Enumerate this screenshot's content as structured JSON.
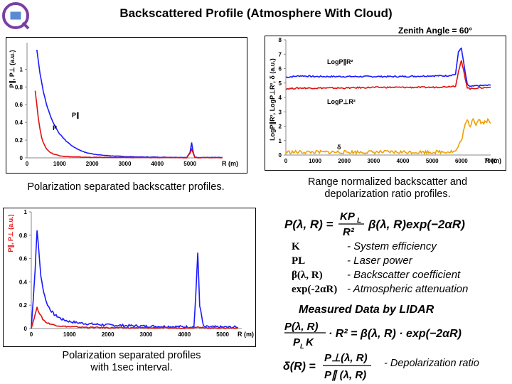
{
  "title": "Backscattered Profile (Atmosphere With Cloud)",
  "zenith_label": "Zenith Angle = 60°",
  "logo": {
    "name": "institute-logo",
    "color": "#7a3fa0"
  },
  "captions": {
    "chart1": "Polarization separated backscatter profiles.",
    "chart2_line1": "Range normalized backscatter and",
    "chart2_line2": "depolarization ratio profiles.",
    "chart3_line1": "Polarization separated profiles",
    "chart3_line2": "with 1sec interval."
  },
  "equation_main": "P(λ, R) = KP_L / R² · β(λ, R) exp(−2αR)",
  "legend": [
    {
      "key": "K",
      "desc": "- System efficiency"
    },
    {
      "key": "PL",
      "desc": "- Laser power"
    },
    {
      "key": "β(λ, R)",
      "desc": "- Backscatter coefficient"
    },
    {
      "key": "exp(-2αR)",
      "desc": "- Atmospheric attenuation"
    }
  ],
  "measured_title": "Measured Data by LIDAR",
  "equation_measured": "P(λ, R) / (P_L K) · R² = β(λ, R) · exp(−2αR)",
  "equation_depol": "δ(R) = P⊥(λ, R) / P∥(λ, R)",
  "depol_desc": "- Depolarization ratio",
  "chart_data": [
    {
      "type": "line",
      "ylabel": "P∥, P⊥ (a.u.)",
      "xlabel": "R (m)",
      "xlim": [
        0,
        6000
      ],
      "ylim": [
        0,
        1.3
      ],
      "xticks": [
        "0",
        "1000",
        "2000",
        "3000",
        "4000",
        "5000"
      ],
      "yticks": [
        "0",
        "0.2",
        "0.4",
        "0.6",
        "0.8",
        "1"
      ],
      "series": [
        {
          "name": "P∥",
          "color": "#1a1aff",
          "x": [
            300,
            400,
            500,
            600,
            700,
            800,
            900,
            1000,
            1200,
            1400,
            1600,
            1800,
            2000,
            2300,
            2600,
            3000,
            3500,
            4000,
            4500,
            4900,
            5000,
            5050,
            5100,
            5150,
            5200,
            5300,
            6000
          ],
          "y": [
            1.22,
            0.95,
            0.75,
            0.6,
            0.49,
            0.4,
            0.33,
            0.27,
            0.19,
            0.13,
            0.09,
            0.06,
            0.045,
            0.03,
            0.022,
            0.015,
            0.01,
            0.008,
            0.006,
            0.005,
            0.06,
            0.17,
            0.06,
            0.01,
            0.005,
            0.004,
            0.004
          ]
        },
        {
          "name": "P",
          "color": "#e01010",
          "x": [
            250,
            300,
            350,
            400,
            450,
            500,
            600,
            700,
            800,
            1000,
            1200,
            1500,
            2000,
            3000,
            4000,
            4900,
            5000,
            5050,
            5100,
            5150,
            5200,
            6000
          ],
          "y": [
            0.76,
            0.6,
            0.44,
            0.32,
            0.23,
            0.17,
            0.1,
            0.065,
            0.045,
            0.025,
            0.015,
            0.01,
            0.006,
            0.004,
            0.003,
            0.003,
            0.05,
            0.1,
            0.05,
            0.006,
            0.003,
            0.003
          ]
        }
      ]
    },
    {
      "type": "line",
      "ylabel": "LogP∥R², LogP⊥R², δ (a.u.)",
      "xlabel": "R (m)",
      "xlim": [
        0,
        7000
      ],
      "ylim": [
        0,
        8
      ],
      "xticks": [
        "0",
        "1000",
        "2000",
        "3000",
        "4000",
        "5000",
        "6000",
        "7000"
      ],
      "yticks": [
        "0",
        "1",
        "2",
        "3",
        "4",
        "5",
        "6",
        "7",
        "8"
      ],
      "annotations": [
        "LogP∥R²",
        "LogP⊥R²",
        "δ"
      ],
      "series": [
        {
          "name": "LogP∥R²",
          "color": "#1a1aff",
          "x": [
            0,
            500,
            1000,
            2000,
            3000,
            4000,
            5000,
            5500,
            5800,
            5900,
            6000,
            6100,
            6200,
            6300,
            6500,
            7000
          ],
          "y": [
            5.4,
            5.5,
            5.45,
            5.45,
            5.45,
            5.45,
            5.5,
            5.5,
            5.6,
            7.2,
            7.4,
            6.1,
            4.9,
            4.75,
            4.8,
            4.85
          ]
        },
        {
          "name": "LogP⊥R²",
          "color": "#e01010",
          "x": [
            0,
            500,
            1000,
            2000,
            3000,
            4000,
            5000,
            5500,
            5800,
            5900,
            6000,
            6100,
            6200,
            6300,
            6500,
            7000
          ],
          "y": [
            4.6,
            4.65,
            4.65,
            4.65,
            4.7,
            4.7,
            4.7,
            4.75,
            4.8,
            5.8,
            6.55,
            5.6,
            4.7,
            4.6,
            4.65,
            4.7
          ]
        },
        {
          "name": "δ",
          "color": "#f0a000",
          "x": [
            0,
            1000,
            2000,
            3000,
            4000,
            5000,
            5800,
            6000,
            6100,
            6200,
            6300,
            6400,
            6500,
            6600,
            6700,
            6800,
            6900,
            7000
          ],
          "y": [
            0.2,
            0.2,
            0.2,
            0.2,
            0.2,
            0.2,
            0.25,
            1.0,
            1.9,
            2.4,
            2.0,
            2.6,
            2.1,
            2.5,
            2.2,
            2.3,
            2.4,
            2.2
          ]
        }
      ]
    },
    {
      "type": "line",
      "ylabel": "P∥, P⊥ (a.u.)",
      "xlabel": "R (m)",
      "xlim": [
        0,
        5500
      ],
      "ylim": [
        0,
        1
      ],
      "xticks": [
        "0",
        "1000",
        "2000",
        "3000",
        "4000",
        "5000"
      ],
      "yticks": [
        "0",
        "0.2",
        "0.4",
        "0.6",
        "0.8",
        "1"
      ],
      "series": [
        {
          "name": "P∥",
          "color": "#1a1aff",
          "x": [
            0,
            100,
            150,
            200,
            250,
            300,
            400,
            500,
            600,
            700,
            800,
            1000,
            1200,
            1500,
            2000,
            2500,
            3000,
            3500,
            4000,
            4250,
            4300,
            4350,
            4400,
            4500,
            5000,
            5400
          ],
          "y": [
            0.0,
            0.5,
            0.85,
            0.65,
            0.45,
            0.35,
            0.22,
            0.16,
            0.12,
            0.1,
            0.08,
            0.06,
            0.05,
            0.04,
            0.03,
            0.025,
            0.02,
            0.018,
            0.015,
            0.015,
            0.3,
            0.65,
            0.2,
            0.015,
            0.012,
            0.012
          ]
        },
        {
          "name": "P⊥",
          "color": "#e01010",
          "x": [
            0,
            100,
            150,
            200,
            300,
            400,
            600,
            800,
            1000,
            1500,
            2000,
            3000,
            4000,
            4300,
            4350,
            4400,
            4500,
            5400
          ],
          "y": [
            0.0,
            0.12,
            0.18,
            0.14,
            0.08,
            0.05,
            0.03,
            0.02,
            0.015,
            0.01,
            0.008,
            0.006,
            0.005,
            0.01,
            0.02,
            0.01,
            0.005,
            0.005
          ]
        }
      ]
    }
  ]
}
